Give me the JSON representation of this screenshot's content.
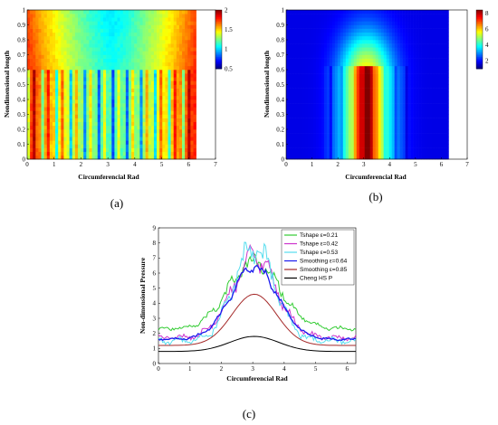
{
  "chart_data": [
    {
      "panel": "(a)",
      "type": "heatmap",
      "xlabel": "Circumferencial Rad",
      "ylabel": "Nondimensional length",
      "xticks": [
        "0",
        "1",
        "2",
        "3",
        "4",
        "5",
        "6",
        "7"
      ],
      "yticks": [
        "0",
        "0.1",
        "0.2",
        "0.3",
        "0.4",
        "0.5",
        "0.6",
        "0.7",
        "0.8",
        "0.9",
        "1"
      ],
      "xlim": [
        0,
        7
      ],
      "ylim": [
        0,
        1
      ],
      "x_extent": [
        0,
        6.28
      ],
      "colorbar": {
        "ticks": [
          "0.5",
          "1",
          "1.5",
          "2"
        ],
        "range": [
          0.5,
          2
        ]
      },
      "grid": [
        60,
        40
      ]
    },
    {
      "panel": "(b)",
      "type": "heatmap",
      "xlabel": "Circumferencial Rad",
      "ylabel": "Nondimensional length",
      "xticks": [
        "0",
        "1",
        "2",
        "3",
        "4",
        "5",
        "6",
        "7"
      ],
      "yticks": [
        "0",
        "0.1",
        "0.2",
        "0.3",
        "0.4",
        "0.5",
        "0.6",
        "0.7",
        "0.8",
        "0.9",
        "1"
      ],
      "xlim": [
        0,
        7
      ],
      "ylim": [
        0,
        1
      ],
      "x_extent": [
        0,
        6.28
      ],
      "colorbar": {
        "ticks": [
          "2",
          "4",
          "6",
          "8"
        ],
        "range": [
          1,
          8.4
        ]
      },
      "grid": [
        60,
        40
      ]
    },
    {
      "panel": "(c)",
      "type": "line",
      "xlabel": "Circumferencial Rad",
      "ylabel": "Non-dimensional Pressure",
      "xticks": [
        "0",
        "1",
        "2",
        "3",
        "4",
        "5",
        "6"
      ],
      "yticks": [
        "0",
        "1",
        "2",
        "3",
        "4",
        "5",
        "6",
        "7",
        "8",
        "9"
      ],
      "xlim": [
        0,
        6.28
      ],
      "ylim": [
        0,
        9
      ],
      "legend": "top-right",
      "series": [
        {
          "name": "Tshape ε=0.21",
          "color": "#33cc33",
          "kind": "noisy",
          "base": 2.3,
          "peak": 6.7,
          "width": 1.15,
          "noise": 0.6
        },
        {
          "name": "Tshape ε=0.42",
          "color": "#cc33cc",
          "kind": "noisy",
          "base": 1.7,
          "peak": 7.0,
          "width": 1.0,
          "noise": 0.8
        },
        {
          "name": "Tshape ε=0.53",
          "color": "#55ddee",
          "kind": "noisy",
          "base": 1.5,
          "peak": 7.8,
          "width": 0.9,
          "noise": 1.0
        },
        {
          "name": "Smoothing ε=0.64",
          "color": "#1a1aee",
          "kind": "noisy",
          "base": 1.6,
          "peak": 6.4,
          "width": 1.05,
          "noise": 0.35
        },
        {
          "name": "Smoothing ε=0.85",
          "color": "#a52a2a",
          "kind": "smooth",
          "base": 1.2,
          "peak": 4.6,
          "width": 1.0,
          "noise": 0
        },
        {
          "name": "Cheng HS P",
          "color": "#000000",
          "kind": "smooth",
          "base": 0.8,
          "peak": 1.8,
          "width": 1.1,
          "noise": 0
        }
      ]
    }
  ]
}
